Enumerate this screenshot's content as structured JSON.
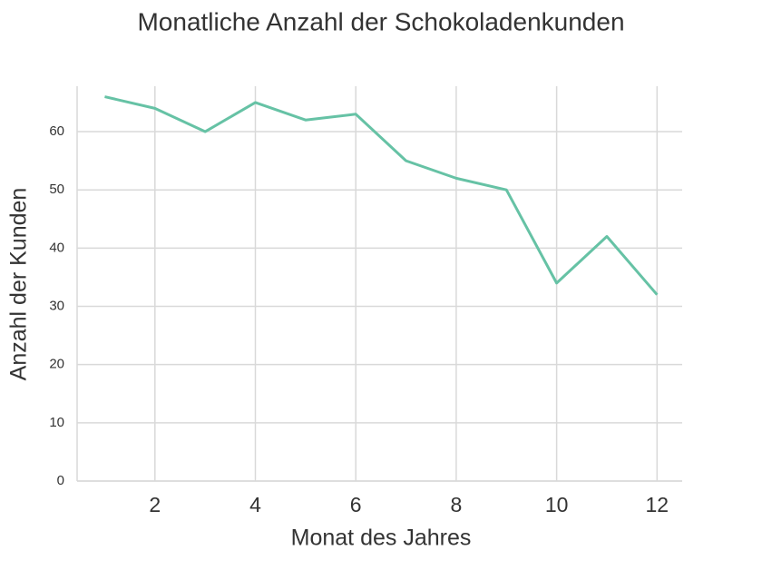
{
  "chart_data": {
    "type": "line",
    "title": "Monatliche Anzahl der Schokoladenkunden",
    "x_label": "Monat des Jahres",
    "y_label": "Anzahl der Kunden",
    "x": [
      1,
      2,
      3,
      4,
      5,
      6,
      7,
      8,
      9,
      10,
      11,
      12
    ],
    "series": [
      {
        "name": "Kunden",
        "color": "#66c2a5",
        "values": [
          66,
          64,
          60,
          65,
          62,
          63,
          55,
          52,
          50,
          34,
          42,
          32
        ]
      }
    ],
    "xlim": [
      0.45,
      12.5
    ],
    "ylim": [
      0,
      67.8
    ],
    "xticks": [
      2,
      4,
      6,
      8,
      10,
      12
    ],
    "yticks": [
      0,
      10,
      20,
      30,
      40,
      50,
      60
    ],
    "grid": true
  }
}
